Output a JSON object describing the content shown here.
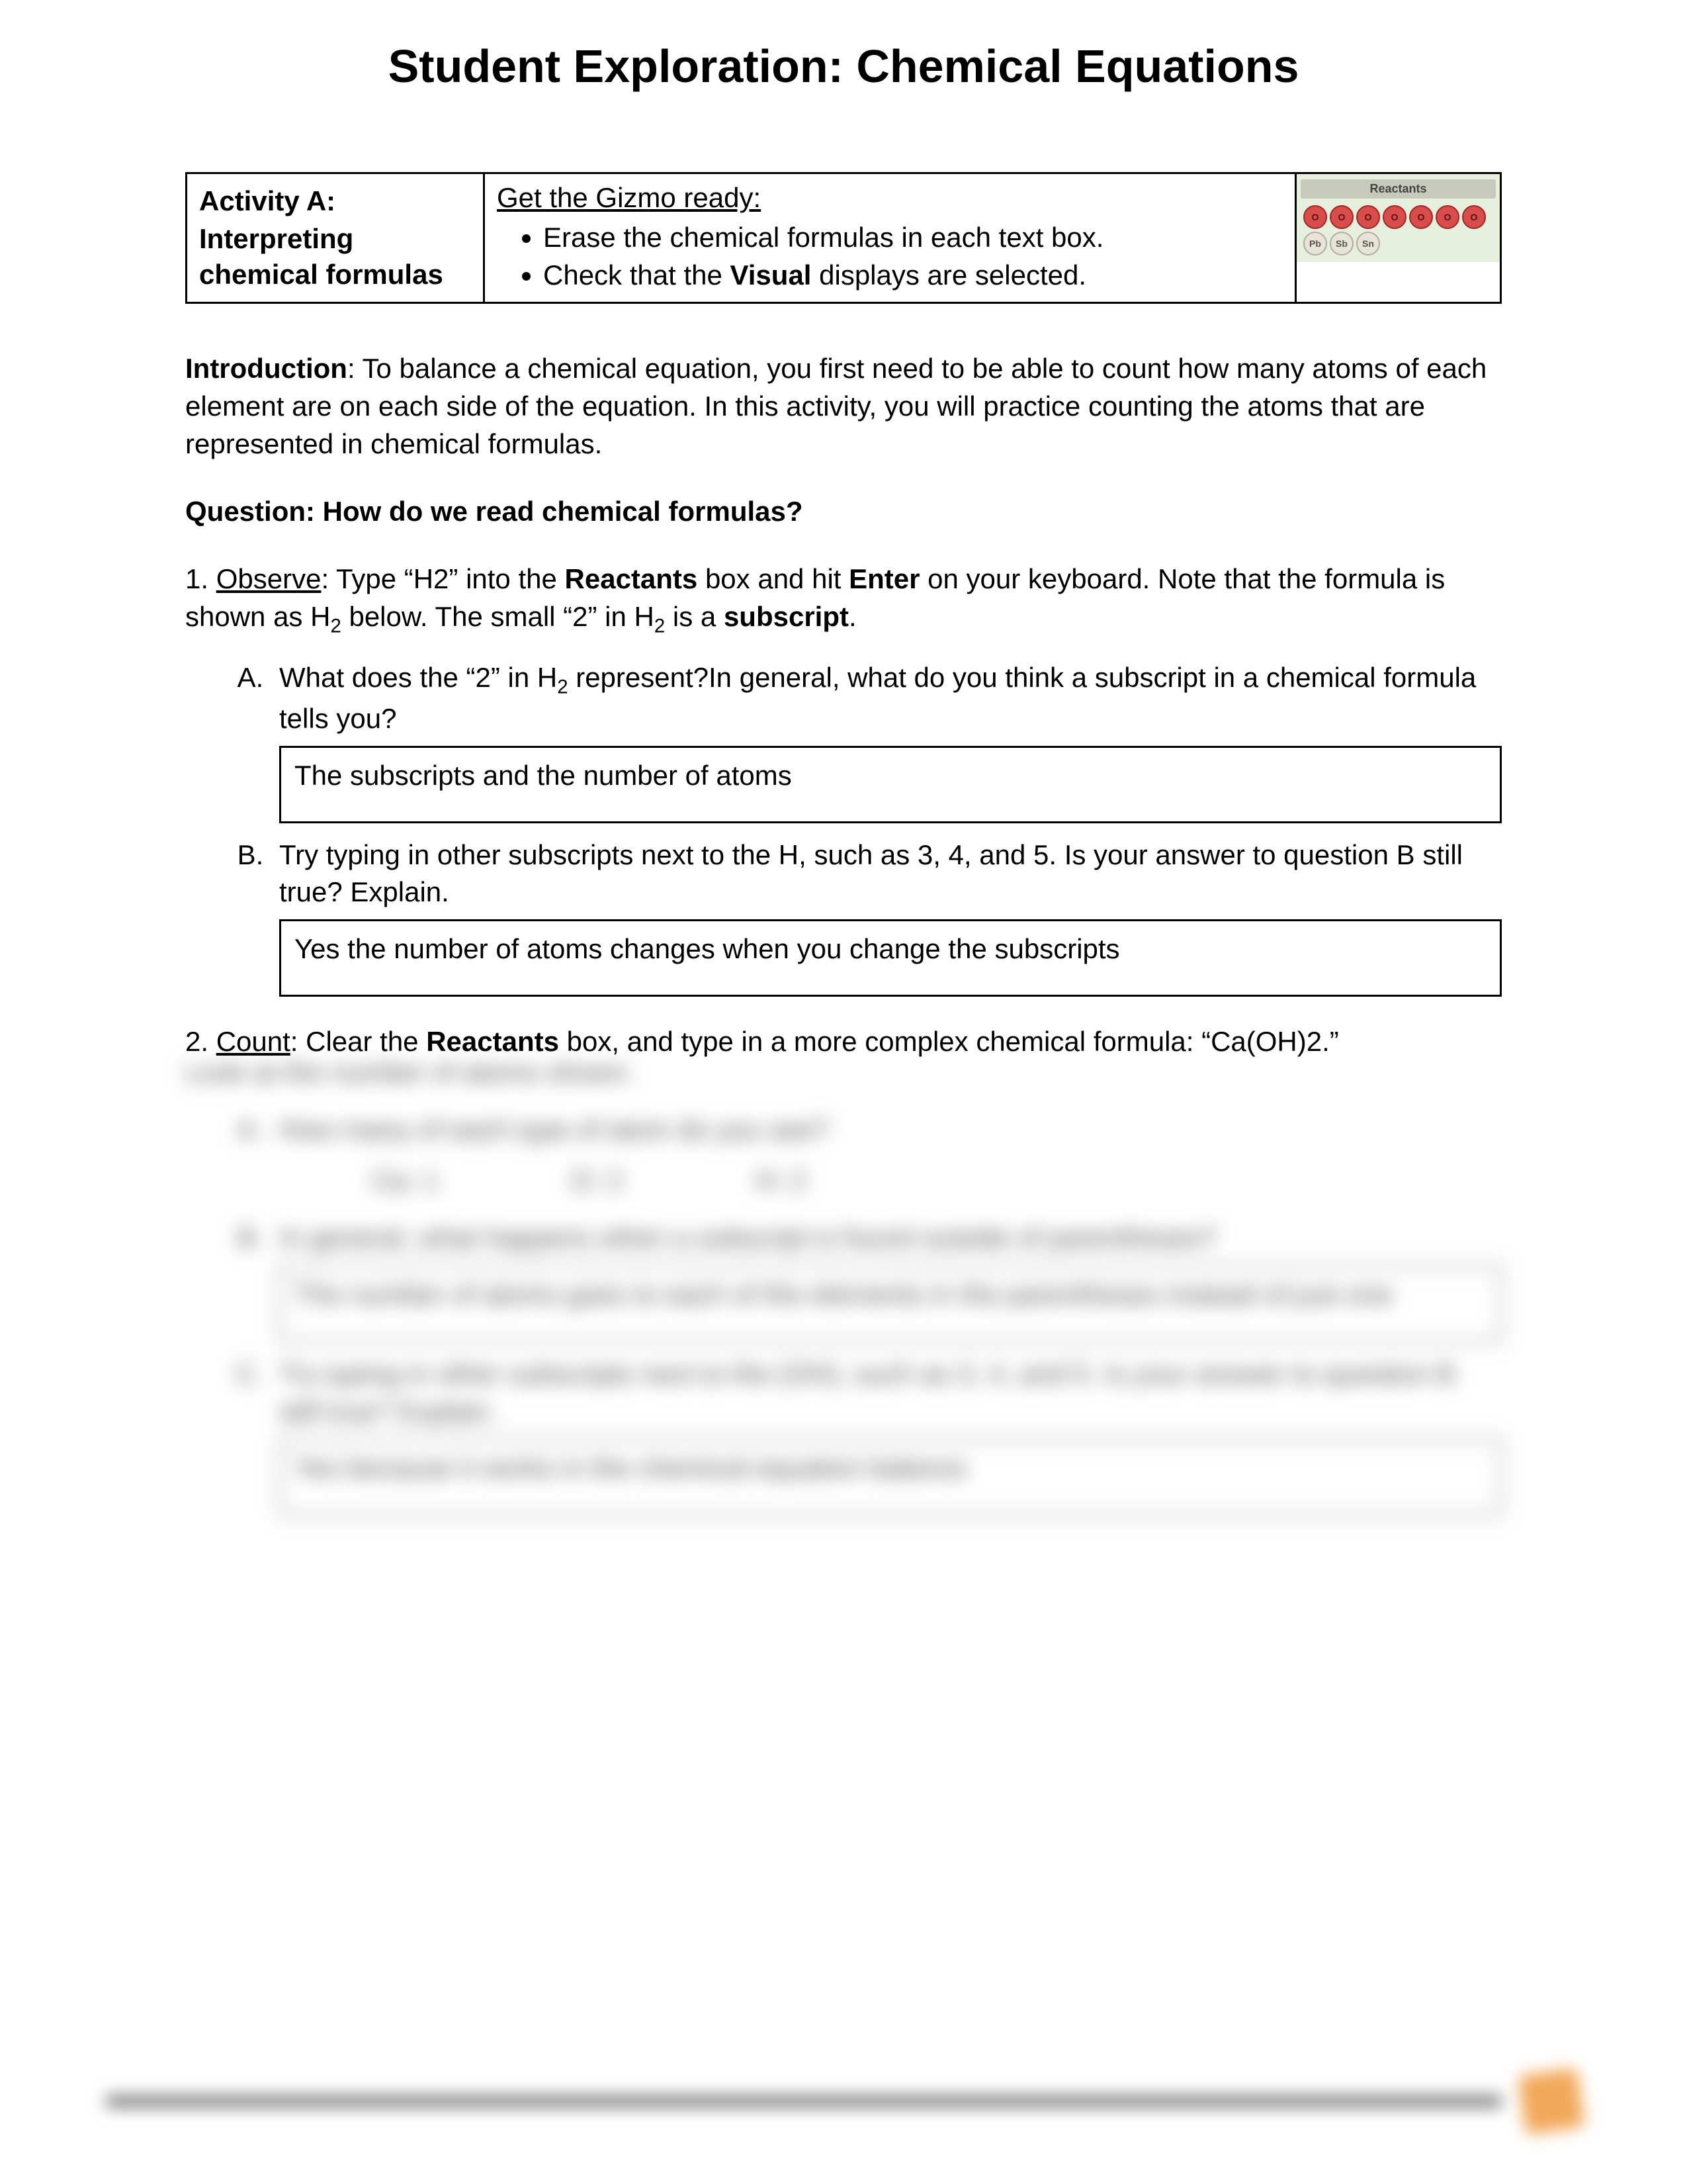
{
  "title": "Student Exploration: Chemical Equations",
  "activity": {
    "label": "Activity A:",
    "subtitle": "Interpreting chemical formulas",
    "ready_heading": "Get the Gizmo ready:",
    "ready_items": [
      "Erase the chemical formulas in each text box.",
      "Check that the <b>Visual</b> displays are selected."
    ],
    "widget": {
      "title": "Reactants",
      "row1": [
        "O",
        "O",
        "O",
        "O",
        "O",
        "O",
        "O"
      ],
      "row2": [
        "Pb",
        "Sb",
        "Sn"
      ]
    }
  },
  "intro_label": "Introduction",
  "intro_text": ": To balance a chemical equation, you first need to be able to count how many atoms of each element are on each side of the equation. In this activity, you will practice counting the atoms that are represented in chemical formulas.",
  "question_heading": "Question: How do we read chemical formulas?",
  "q1": {
    "num": "1. ",
    "lead": "Observe",
    "text_a": ": Type “H2” into the ",
    "text_b": "Reactants",
    "text_c": " box and hit ",
    "text_d": "Enter",
    "text_e": " on your keyboard. Note that the formula is shown as H",
    "text_f": " below. The small “2” in H",
    "text_g": " is a ",
    "text_h": "subscript",
    "text_i": ".",
    "partA_q": "What does the “2” in H₂ represent?In general, what do you think a subscript in a chemical formula tells you?",
    "partA_ans": "The subscripts and the number of atoms",
    "partB_q": "Try typing in other subscripts next to the H, such as 3, 4, and 5. Is your answer to question B still true? Explain.",
    "partB_ans": "Yes the number of atoms changes when you change the subscripts"
  },
  "q2": {
    "line1_a": "2. ",
    "line1_b": "Count",
    "line1_c": ": Clear the ",
    "line1_d": "Reactants",
    "line1_e": " box, and type in a more complex chemical formula: “Ca(OH)2.”",
    "blur_line2": "Look at the number of atoms shown.",
    "blur_q_a": "How many of each type of atom do you see?",
    "counts": [
      {
        "label": "Ca:",
        "val": "1"
      },
      {
        "label": "O:",
        "val": "2"
      },
      {
        "label": "H:",
        "val": "2"
      }
    ],
    "blur_q_b": "In general, what happens when a subscript is found outside of parentheses?",
    "blur_ans_b": "The number of atoms goes to each of the elements in the parentheses instead of just one",
    "blur_q_c": "Try typing in other subscripts next to the (OH), such as 3, 4, and 5. Is your answer to question B still true? Explain.",
    "blur_ans_c": "Yes because it works in the chemical equation balance"
  },
  "colors": {
    "page_bg": "#ffffff",
    "text": "#000000",
    "widget_bg": "#e6f0dc",
    "widget_title_bg": "#c7c9bc",
    "atom_red_fill": "#d84c4c",
    "atom_red_border": "#a02525",
    "atom_grey_fill": "#e8e4d8",
    "atom_grey_border": "#b0ac9e",
    "footer_badge": "#f2a85a"
  }
}
